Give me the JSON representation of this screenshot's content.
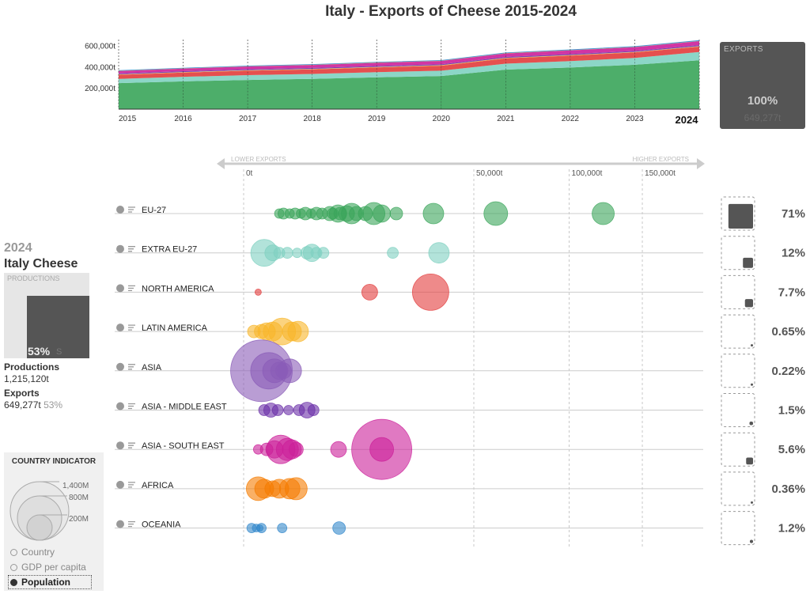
{
  "title": "Italy - Exports of Cheese 2015-2024",
  "exports_box": {
    "label": "EXPORTS",
    "percent": "100%",
    "value": "649,277t"
  },
  "left_panel": {
    "year": "2024",
    "subtitle": "Italy Cheese",
    "productions_box_label": "PRODUCTIONS",
    "productions_box_percent": "53%",
    "productions_box_ghost": "S",
    "productions_share": 0.53,
    "productions_label": "Productions",
    "productions_value": "1,215,120t",
    "exports_label": "Exports",
    "exports_value": "649,277t",
    "exports_pct": "53%"
  },
  "country_indicator": {
    "title": "COUNTRY INDICATOR",
    "size_labels": [
      "1,400M",
      "800M",
      "200M"
    ],
    "options": [
      "Country",
      "GDP per capita",
      "Population"
    ],
    "selected": "Population"
  },
  "colors": {
    "eu27": "#3aa55a",
    "extra_eu27": "#7fd1c1",
    "north_america": "#e23c3c",
    "latin_america": "#f9b62a",
    "asia": "#8a5cb8",
    "asia_middle_east": "#6a2fa8",
    "asia_south_east": "#cc1f9a",
    "africa": "#f57c00",
    "oceania": "#3388cc"
  },
  "chart_data": [
    {
      "type": "area",
      "stacked": true,
      "x": [
        2015,
        2016,
        2017,
        2018,
        2019,
        2020,
        2021,
        2022,
        2023,
        2024
      ],
      "highlight_x": 2024,
      "ylim": [
        0,
        700000
      ],
      "yticks": [
        "200,000t",
        "400,000t",
        "600,000t"
      ],
      "ytick_values": [
        200000,
        400000,
        600000
      ],
      "series": [
        {
          "key": "eu27",
          "values": [
            245000,
            262000,
            275000,
            285000,
            300000,
            312000,
            372000,
            392000,
            418000,
            460000
          ]
        },
        {
          "key": "extra_eu27",
          "values": [
            40000,
            42000,
            45000,
            46000,
            48000,
            50000,
            56000,
            60000,
            64000,
            78000
          ]
        },
        {
          "key": "north_america",
          "values": [
            38000,
            40000,
            42000,
            43000,
            45000,
            47000,
            50000,
            52000,
            52000,
            50000
          ]
        },
        {
          "key": "latin_america",
          "values": [
            4000,
            4000,
            4000,
            4000,
            4000,
            4000,
            4000,
            4000,
            4000,
            4200
          ]
        },
        {
          "key": "asia",
          "values": [
            1500,
            1500,
            1500,
            1500,
            1500,
            1500,
            1500,
            1500,
            1500,
            1400
          ]
        },
        {
          "key": "asia_middle_east",
          "values": [
            8000,
            8000,
            8000,
            8500,
            8500,
            8500,
            9000,
            9000,
            9000,
            9700
          ]
        },
        {
          "key": "asia_south_east",
          "values": [
            22000,
            24000,
            26000,
            27000,
            29000,
            30000,
            32000,
            34000,
            35000,
            36000
          ]
        },
        {
          "key": "africa",
          "values": [
            2000,
            2000,
            2000,
            2000,
            2000,
            2000,
            2000,
            2000,
            2200,
            2300
          ]
        },
        {
          "key": "oceania",
          "values": [
            6000,
            6000,
            6500,
            6500,
            7000,
            7000,
            7000,
            7500,
            7500,
            7800
          ]
        }
      ]
    },
    {
      "type": "scatter",
      "x_scale": "sqrt",
      "axis_left_label": "LOWER EXPORTS",
      "axis_right_label": "HIGHER EXPORTS",
      "xticks": [
        "0t",
        "50,000t",
        "100,000t",
        "150,000t"
      ],
      "xtick_values": [
        0,
        50000,
        100000,
        150000
      ],
      "categories": [
        {
          "key": "eu27",
          "name": "EU-27",
          "share": "71%",
          "share_value": 0.71,
          "points": [
            [
              1200,
              6
            ],
            [
              1500,
              7
            ],
            [
              2000,
              6
            ],
            [
              2500,
              7
            ],
            [
              3100,
              6
            ],
            [
              3600,
              8
            ],
            [
              4300,
              6
            ],
            [
              5000,
              8
            ],
            [
              5800,
              7
            ],
            [
              7000,
              9
            ],
            [
              7500,
              7
            ],
            [
              8400,
              11
            ],
            [
              8800,
              8
            ],
            [
              10000,
              10
            ],
            [
              11000,
              13
            ],
            [
              12000,
              9
            ],
            [
              14000,
              9
            ],
            [
              16000,
              14
            ],
            [
              18000,
              11
            ],
            [
              22000,
              8
            ],
            [
              34000,
              13
            ],
            [
              60000,
              15
            ],
            [
              122000,
              14
            ]
          ]
        },
        {
          "key": "extra_eu27",
          "name": "EXTRA EU-27",
          "share": "12%",
          "share_value": 0.12,
          "points": [
            [
              400,
              17
            ],
            [
              800,
              10
            ],
            [
              1200,
              7
            ],
            [
              1800,
              7
            ],
            [
              2700,
              6
            ],
            [
              3800,
              8
            ],
            [
              4400,
              11
            ],
            [
              5000,
              7
            ],
            [
              6000,
              7
            ],
            [
              21000,
              7
            ],
            [
              36000,
              13
            ]
          ]
        },
        {
          "key": "north_america",
          "name": "NORTH AMERICA",
          "share": "7.7%",
          "share_value": 0.077,
          "points": [
            [
              200,
              4
            ],
            [
              15000,
              10
            ],
            [
              33000,
              23
            ]
          ]
        },
        {
          "key": "latin_america",
          "name": "LATIN AMERICA",
          "share": "0.65%",
          "share_value": 0.0065,
          "points": [
            [
              100,
              8
            ],
            [
              300,
              9
            ],
            [
              500,
              11
            ],
            [
              800,
              12
            ],
            [
              1400,
              17
            ],
            [
              2200,
              12
            ],
            [
              2800,
              13
            ]
          ]
        },
        {
          "key": "asia",
          "name": "ASIA",
          "share": "0.22%",
          "share_value": 0.0022,
          "points": [
            [
              300,
              39
            ],
            [
              600,
              23
            ],
            [
              900,
              15
            ],
            [
              1200,
              11
            ],
            [
              1500,
              10
            ],
            [
              2000,
              15
            ]
          ]
        },
        {
          "key": "asia_middle_east",
          "name": "ASIA - MIDDLE EAST",
          "share": "1.5%",
          "share_value": 0.015,
          "points": [
            [
              400,
              7
            ],
            [
              700,
              9
            ],
            [
              1100,
              7
            ],
            [
              1900,
              6
            ],
            [
              2900,
              7
            ],
            [
              3800,
              10
            ],
            [
              4600,
              7
            ]
          ]
        },
        {
          "key": "asia_south_east",
          "name": "ASIA - SOUTH EAST",
          "share": "5.6%",
          "share_value": 0.056,
          "points": [
            [
              200,
              6
            ],
            [
              500,
              8
            ],
            [
              900,
              11
            ],
            [
              1300,
              18
            ],
            [
              1800,
              14
            ],
            [
              2200,
              12
            ],
            [
              2600,
              9
            ],
            [
              8500,
              10
            ],
            [
              18000,
              38
            ],
            [
              18000,
              15
            ]
          ]
        },
        {
          "key": "africa",
          "name": "AFRICA",
          "share": "0.36%",
          "share_value": 0.0036,
          "points": [
            [
              200,
              15
            ],
            [
              400,
              12
            ],
            [
              800,
              10
            ],
            [
              1200,
              12
            ],
            [
              2000,
              13
            ],
            [
              2600,
              14
            ]
          ]
        },
        {
          "key": "oceania",
          "name": "OCEANIA",
          "share": "1.2%",
          "share_value": 0.012,
          "points": [
            [
              60,
              6
            ],
            [
              150,
              5
            ],
            [
              300,
              6
            ],
            [
              250,
              4
            ],
            [
              1400,
              6
            ],
            [
              8600,
              8
            ]
          ]
        }
      ]
    }
  ]
}
